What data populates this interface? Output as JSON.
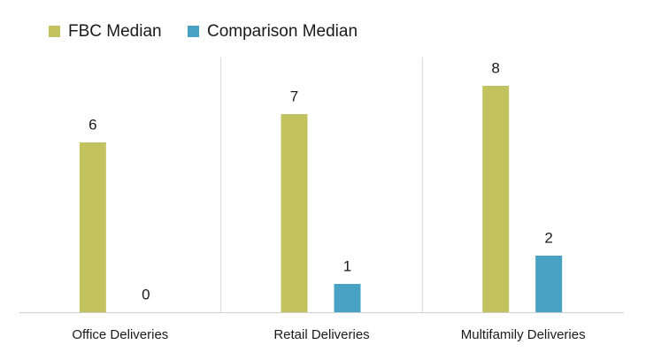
{
  "chart_data": {
    "type": "bar",
    "categories": [
      "Office Deliveries",
      "Retail Deliveries",
      "Multifamily Deliveries"
    ],
    "series": [
      {
        "name": "FBC Median",
        "color": "#c2c35f",
        "values": [
          6,
          7,
          8
        ]
      },
      {
        "name": "Comparison Median",
        "color": "#47a2c3",
        "values": [
          0,
          1,
          2
        ]
      }
    ],
    "ylim": [
      0,
      9
    ],
    "legend": "top-left"
  }
}
